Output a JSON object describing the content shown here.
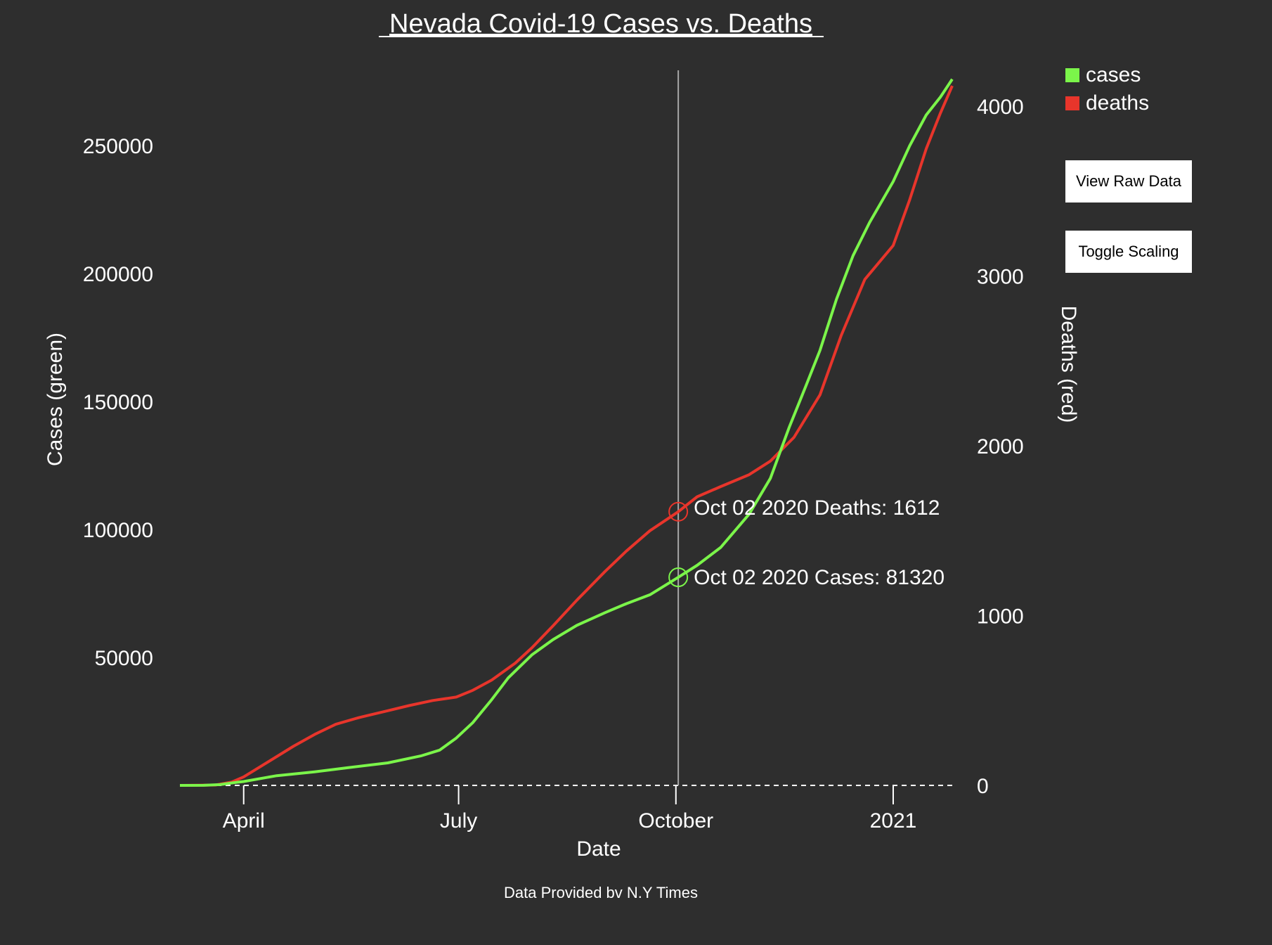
{
  "colors": {
    "background": "#2e2e2e",
    "cases": "#7bf54a",
    "deaths": "#e8352b",
    "text": "#ffffff",
    "cursor": "#a8a8a8"
  },
  "buttons": {
    "view_raw": "View Raw Data",
    "toggle_scaling": "Toggle Scaling"
  },
  "footer": "Data Provided bv N.Y Times",
  "hover": {
    "date": "2020-10-02",
    "deaths_label": "Oct 02 2020 Deaths: 1612",
    "cases_label": "Oct 02 2020 Cases: 81320"
  },
  "chart_data": {
    "type": "line",
    "title": "Nevada Covid-19 Cases vs. Deaths",
    "xlabel": "Date",
    "ylabel_left": "Cases (green)",
    "ylabel_right": "Deaths (red)",
    "x_range": [
      "2020-03-05",
      "2021-01-26"
    ],
    "x_ticks": [
      {
        "date": "2020-04-01",
        "label": "April"
      },
      {
        "date": "2020-07-01",
        "label": "July"
      },
      {
        "date": "2020-10-01",
        "label": "October"
      },
      {
        "date": "2021-01-01",
        "label": "2021"
      }
    ],
    "y_left": {
      "range": [
        0,
        280000
      ],
      "ticks": [
        50000,
        100000,
        150000,
        200000,
        250000
      ]
    },
    "y_right": {
      "range": [
        0,
        4220
      ],
      "ticks": [
        0,
        1000,
        2000,
        3000,
        4000
      ]
    },
    "legend": {
      "position": "top-right",
      "entries": [
        "cases",
        "deaths"
      ]
    },
    "grid": false,
    "series": [
      {
        "name": "cases",
        "axis": "left",
        "points": [
          [
            "2020-03-05",
            0
          ],
          [
            "2020-03-15",
            20
          ],
          [
            "2020-03-22",
            300
          ],
          [
            "2020-03-29",
            1200
          ],
          [
            "2020-04-01",
            1500
          ],
          [
            "2020-04-15",
            3800
          ],
          [
            "2020-05-01",
            5300
          ],
          [
            "2020-05-15",
            6900
          ],
          [
            "2020-06-01",
            8800
          ],
          [
            "2020-06-15",
            11500
          ],
          [
            "2020-06-23",
            13800
          ],
          [
            "2020-06-30",
            18500
          ],
          [
            "2020-07-07",
            24500
          ],
          [
            "2020-07-15",
            33500
          ],
          [
            "2020-07-22",
            42000
          ],
          [
            "2020-08-01",
            51000
          ],
          [
            "2020-08-10",
            57000
          ],
          [
            "2020-08-20",
            62500
          ],
          [
            "2020-09-01",
            67500
          ],
          [
            "2020-09-10",
            71000
          ],
          [
            "2020-09-20",
            74500
          ],
          [
            "2020-10-02",
            81320
          ],
          [
            "2020-10-10",
            86000
          ],
          [
            "2020-10-20",
            93000
          ],
          [
            "2020-11-01",
            106000
          ],
          [
            "2020-11-10",
            120000
          ],
          [
            "2020-11-18",
            140000
          ],
          [
            "2020-11-25",
            156000
          ],
          [
            "2020-12-01",
            170000
          ],
          [
            "2020-12-08",
            190000
          ],
          [
            "2020-12-15",
            207000
          ],
          [
            "2020-12-22",
            220000
          ],
          [
            "2021-01-01",
            236000
          ],
          [
            "2021-01-08",
            250000
          ],
          [
            "2021-01-15",
            262000
          ],
          [
            "2021-01-21",
            269000
          ],
          [
            "2021-01-26",
            276000
          ]
        ]
      },
      {
        "name": "deaths",
        "axis": "right",
        "points": [
          [
            "2020-03-05",
            0
          ],
          [
            "2020-03-20",
            2
          ],
          [
            "2020-03-27",
            20
          ],
          [
            "2020-04-01",
            50
          ],
          [
            "2020-04-08",
            110
          ],
          [
            "2020-04-15",
            170
          ],
          [
            "2020-04-22",
            230
          ],
          [
            "2020-05-01",
            300
          ],
          [
            "2020-05-10",
            360
          ],
          [
            "2020-05-20",
            400
          ],
          [
            "2020-06-01",
            440
          ],
          [
            "2020-06-10",
            470
          ],
          [
            "2020-06-20",
            500
          ],
          [
            "2020-06-30",
            520
          ],
          [
            "2020-07-07",
            560
          ],
          [
            "2020-07-15",
            620
          ],
          [
            "2020-07-25",
            720
          ],
          [
            "2020-08-01",
            810
          ],
          [
            "2020-08-10",
            940
          ],
          [
            "2020-08-20",
            1090
          ],
          [
            "2020-09-01",
            1260
          ],
          [
            "2020-09-10",
            1380
          ],
          [
            "2020-09-20",
            1500
          ],
          [
            "2020-10-02",
            1612
          ],
          [
            "2020-10-10",
            1700
          ],
          [
            "2020-10-20",
            1760
          ],
          [
            "2020-11-01",
            1830
          ],
          [
            "2020-11-10",
            1910
          ],
          [
            "2020-11-20",
            2050
          ],
          [
            "2020-12-01",
            2300
          ],
          [
            "2020-12-10",
            2650
          ],
          [
            "2020-12-20",
            2980
          ],
          [
            "2021-01-01",
            3180
          ],
          [
            "2021-01-08",
            3450
          ],
          [
            "2021-01-15",
            3750
          ],
          [
            "2021-01-21",
            3960
          ],
          [
            "2021-01-26",
            4120
          ]
        ]
      }
    ]
  }
}
